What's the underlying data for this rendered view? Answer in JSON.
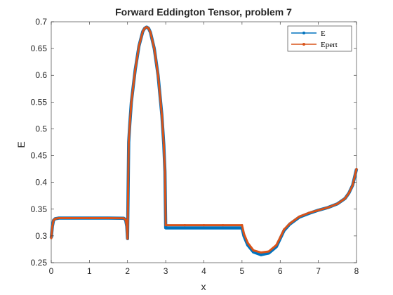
{
  "chart_data": {
    "type": "line",
    "title": "Forward Eddington Tensor, problem 7",
    "xlabel": "x",
    "ylabel": "E",
    "xlim": [
      0,
      8
    ],
    "ylim": [
      0.25,
      0.7
    ],
    "xticks": [
      "0",
      "1",
      "2",
      "3",
      "4",
      "5",
      "6",
      "7",
      "8"
    ],
    "yticks": [
      "0.25",
      "0.3",
      "0.35",
      "0.4",
      "0.45",
      "0.5",
      "0.55",
      "0.6",
      "0.65",
      "0.7"
    ],
    "grid": false,
    "legend_position": "top-right",
    "series": [
      {
        "name": "E",
        "color": "#0072BD",
        "marker": "dot",
        "points": [
          [
            0.0,
            0.296
          ],
          [
            0.03,
            0.318
          ],
          [
            0.06,
            0.329
          ],
          [
            0.1,
            0.332
          ],
          [
            0.2,
            0.3333
          ],
          [
            0.5,
            0.3333
          ],
          [
            1.0,
            0.3333
          ],
          [
            1.5,
            0.3333
          ],
          [
            1.9,
            0.333
          ],
          [
            1.95,
            0.33
          ],
          [
            1.98,
            0.318
          ],
          [
            2.0,
            0.295
          ],
          [
            2.03,
            0.475
          ],
          [
            2.06,
            0.51
          ],
          [
            2.1,
            0.55
          ],
          [
            2.2,
            0.61
          ],
          [
            2.3,
            0.655
          ],
          [
            2.4,
            0.682
          ],
          [
            2.45,
            0.688
          ],
          [
            2.5,
            0.69
          ],
          [
            2.55,
            0.688
          ],
          [
            2.6,
            0.68
          ],
          [
            2.7,
            0.65
          ],
          [
            2.8,
            0.6
          ],
          [
            2.9,
            0.525
          ],
          [
            2.95,
            0.47
          ],
          [
            2.98,
            0.42
          ],
          [
            3.0,
            0.315
          ],
          [
            3.5,
            0.315
          ],
          [
            4.0,
            0.315
          ],
          [
            4.5,
            0.315
          ],
          [
            5.0,
            0.315
          ],
          [
            5.05,
            0.3
          ],
          [
            5.15,
            0.283
          ],
          [
            5.3,
            0.27
          ],
          [
            5.5,
            0.265
          ],
          [
            5.7,
            0.268
          ],
          [
            5.9,
            0.28
          ],
          [
            6.0,
            0.295
          ],
          [
            6.1,
            0.31
          ],
          [
            6.25,
            0.322
          ],
          [
            6.5,
            0.335
          ],
          [
            6.75,
            0.342
          ],
          [
            7.0,
            0.348
          ],
          [
            7.25,
            0.353
          ],
          [
            7.5,
            0.36
          ],
          [
            7.7,
            0.37
          ],
          [
            7.8,
            0.38
          ],
          [
            7.9,
            0.395
          ],
          [
            8.0,
            0.425
          ]
        ]
      },
      {
        "name": "Epert",
        "color": "#D95319",
        "marker": "dot",
        "points": [
          [
            0.0,
            0.296
          ],
          [
            0.03,
            0.318
          ],
          [
            0.06,
            0.329
          ],
          [
            0.1,
            0.332
          ],
          [
            0.2,
            0.3333
          ],
          [
            0.5,
            0.3333
          ],
          [
            1.0,
            0.3333
          ],
          [
            1.5,
            0.3333
          ],
          [
            1.9,
            0.333
          ],
          [
            1.95,
            0.33
          ],
          [
            1.98,
            0.318
          ],
          [
            2.0,
            0.295
          ],
          [
            2.03,
            0.475
          ],
          [
            2.06,
            0.51
          ],
          [
            2.1,
            0.55
          ],
          [
            2.2,
            0.61
          ],
          [
            2.3,
            0.655
          ],
          [
            2.4,
            0.682
          ],
          [
            2.45,
            0.688
          ],
          [
            2.5,
            0.69
          ],
          [
            2.55,
            0.688
          ],
          [
            2.6,
            0.68
          ],
          [
            2.7,
            0.65
          ],
          [
            2.8,
            0.6
          ],
          [
            2.9,
            0.525
          ],
          [
            2.95,
            0.47
          ],
          [
            2.98,
            0.42
          ],
          [
            3.0,
            0.32
          ],
          [
            3.5,
            0.32
          ],
          [
            4.0,
            0.32
          ],
          [
            4.5,
            0.32
          ],
          [
            5.0,
            0.32
          ],
          [
            5.05,
            0.304
          ],
          [
            5.15,
            0.287
          ],
          [
            5.3,
            0.273
          ],
          [
            5.5,
            0.269
          ],
          [
            5.7,
            0.271
          ],
          [
            5.9,
            0.283
          ],
          [
            6.0,
            0.297
          ],
          [
            6.1,
            0.312
          ],
          [
            6.25,
            0.323
          ],
          [
            6.5,
            0.336
          ],
          [
            6.75,
            0.343
          ],
          [
            7.0,
            0.348
          ],
          [
            7.25,
            0.353
          ],
          [
            7.5,
            0.36
          ],
          [
            7.7,
            0.37
          ],
          [
            7.8,
            0.38
          ],
          [
            7.9,
            0.395
          ],
          [
            8.0,
            0.425
          ]
        ]
      }
    ]
  }
}
